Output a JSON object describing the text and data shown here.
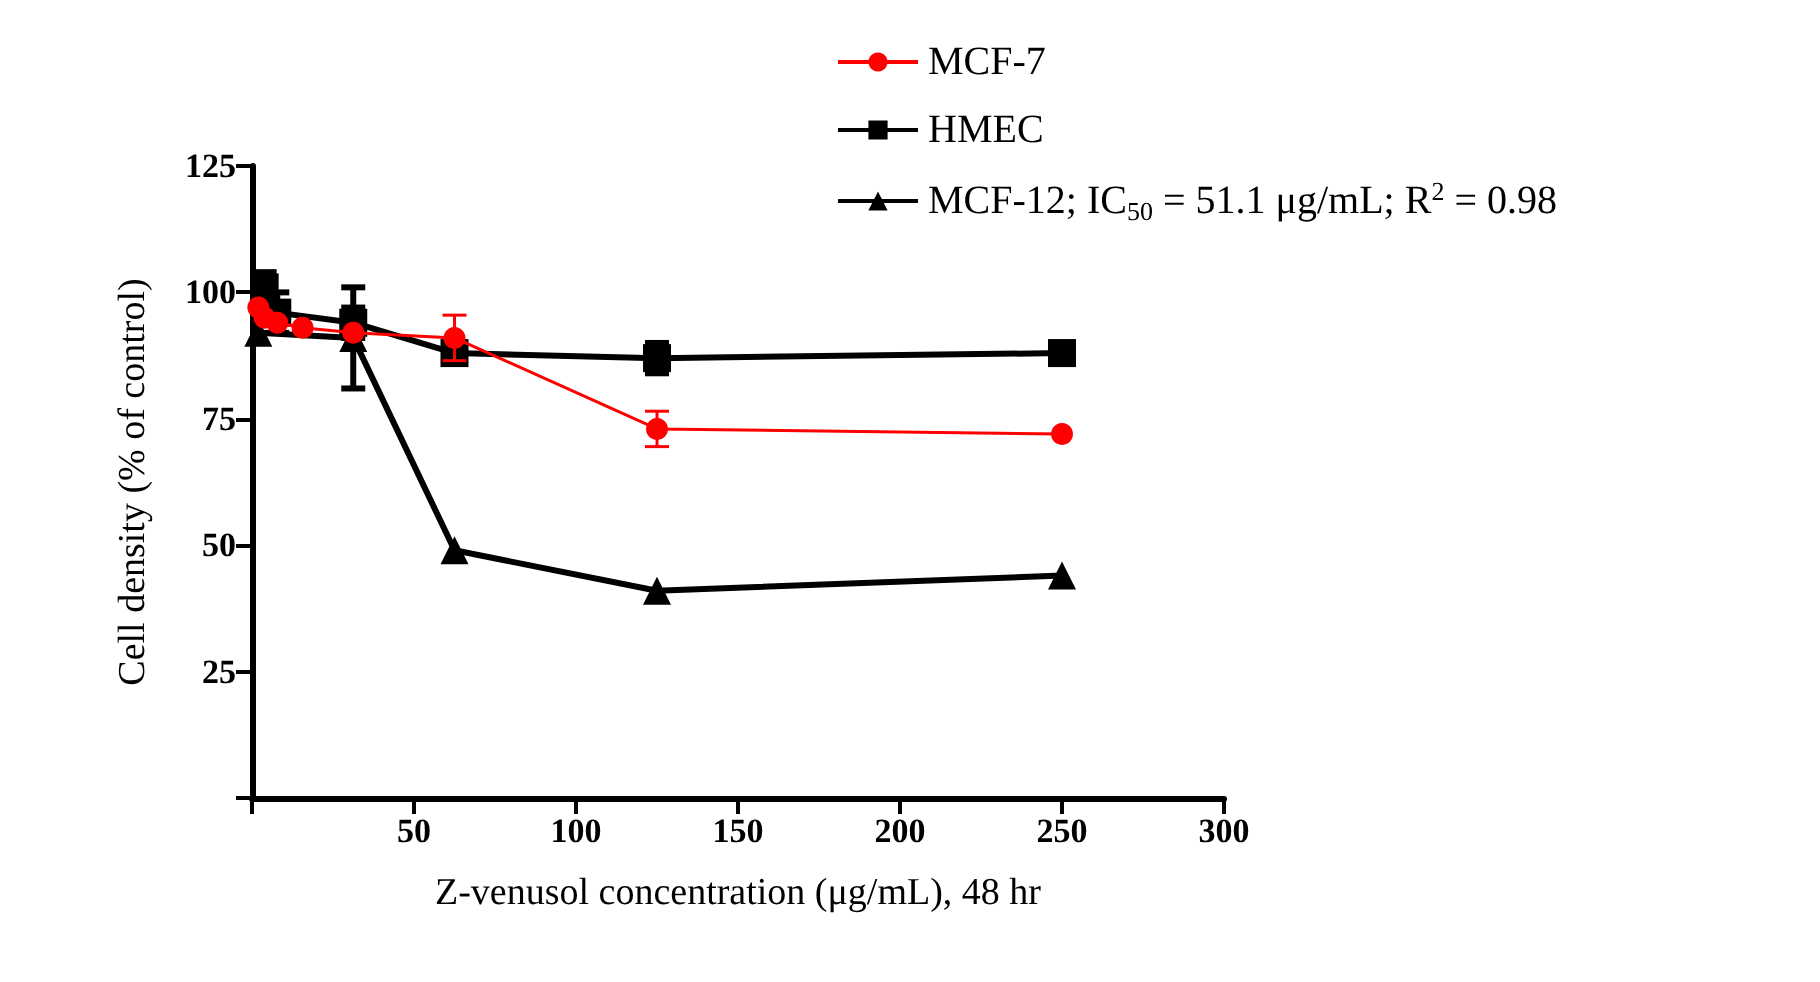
{
  "chart_data": {
    "type": "line",
    "xlabel": "Z-venusol concentration (μg/mL), 48 hr",
    "ylabel": "Cell density (% of control)",
    "x": [
      1.95,
      3.9,
      7.8,
      15.6,
      31.25,
      62.5,
      125,
      250
    ],
    "series": [
      {
        "name": "MCF-7",
        "color": "#ff0000",
        "marker": "circle",
        "values": [
          97,
          95,
          94,
          93,
          92,
          91,
          73,
          72
        ],
        "errors": [
          null,
          null,
          null,
          null,
          null,
          4.5,
          3.5,
          null
        ]
      },
      {
        "name": "HMEC",
        "color": "#000000",
        "marker": "square",
        "values": [
          null,
          101,
          96,
          null,
          94,
          88,
          87,
          88
        ],
        "errors": [
          null,
          3,
          4,
          null,
          3,
          2,
          3,
          1
        ]
      },
      {
        "name": "MCF-12; IC$_{50}$ = 51.1 μg/mL; R$^{2}$ = 0.98",
        "color": "#000000",
        "marker": "triangle",
        "values": [
          92,
          null,
          null,
          null,
          91,
          49,
          41,
          44
        ],
        "errors": [
          null,
          null,
          null,
          null,
          10,
          null,
          null,
          null
        ]
      }
    ],
    "xlim": [
      0,
      300
    ],
    "xticks": [
      {
        "value": 0,
        "label": null
      },
      50,
      100,
      150,
      200,
      250,
      300
    ],
    "ylim": [
      0,
      125
    ],
    "yticks": [
      {
        "value": 0,
        "label": null
      },
      25,
      50,
      75,
      100,
      125
    ],
    "grid": false,
    "legend": "top right"
  }
}
